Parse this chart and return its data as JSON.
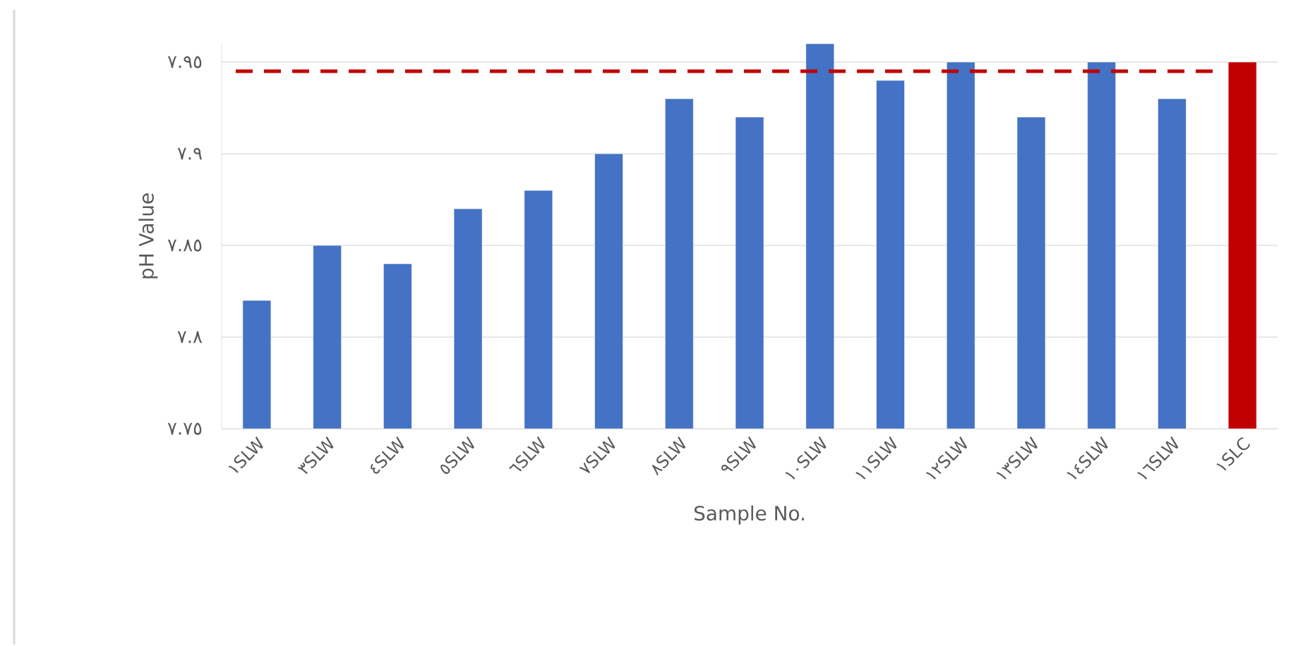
{
  "chart_data": {
    "type": "bar",
    "xlabel": "Sample No.",
    "ylabel": "pH Value",
    "categories": [
      "١SLW",
      "٣SLW",
      "٤SLW",
      "٥SLW",
      "٦SLW",
      "٧SLW",
      "٨SLW",
      "٩SLW",
      "١٠SLW",
      "١١SLW",
      "١٢SLW",
      "١٣SLW",
      "١٤SLW",
      "١٦SLW",
      "١SLC"
    ],
    "values": [
      7.82,
      7.85,
      7.84,
      7.87,
      7.88,
      7.9,
      7.93,
      7.92,
      7.96,
      7.94,
      7.95,
      7.92,
      7.95,
      7.93,
      7.95
    ],
    "colors": [
      "#4472c4",
      "#4472c4",
      "#4472c4",
      "#4472c4",
      "#4472c4",
      "#4472c4",
      "#4472c4",
      "#4472c4",
      "#4472c4",
      "#4472c4",
      "#4472c4",
      "#4472c4",
      "#4472c4",
      "#4472c4",
      "#c00000"
    ],
    "ylim": [
      7.75,
      7.96
    ],
    "yticks": [
      {
        "value": 7.75,
        "label": "٧.٧٥"
      },
      {
        "value": 7.8,
        "label": "٧.٨"
      },
      {
        "value": 7.85,
        "label": "٧.٨٥"
      },
      {
        "value": 7.9,
        "label": "٧.٩"
      },
      {
        "value": 7.95,
        "label": "٧.٩٥"
      }
    ],
    "ref_lines": [
      {
        "axis": "y",
        "value": 7.945,
        "color": "#c00000",
        "line_style": "dashed"
      }
    ],
    "grid": "y"
  }
}
